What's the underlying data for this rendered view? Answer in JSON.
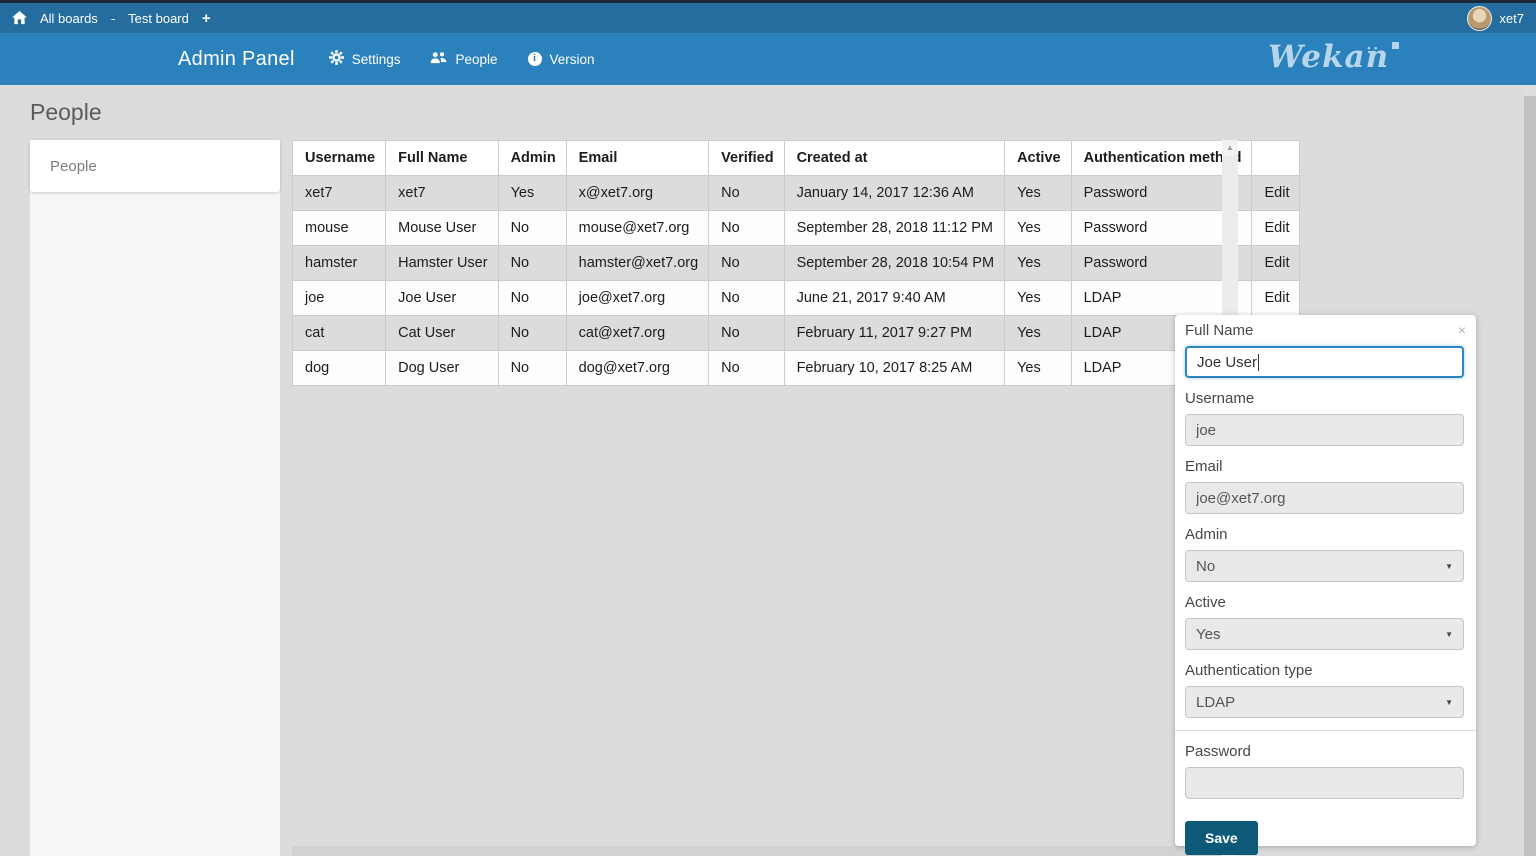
{
  "topbar": {
    "all_boards": "All boards",
    "separator": "-",
    "board_name": "Test board",
    "username": "xet7"
  },
  "adminbar": {
    "title": "Admin Panel",
    "nav": {
      "settings": "Settings",
      "people": "People",
      "version": "Version"
    },
    "logo_text": "Wekan"
  },
  "page": {
    "title": "People",
    "sidebar_item": "People"
  },
  "table": {
    "headers": [
      "Username",
      "Full Name",
      "Admin",
      "Email",
      "Verified",
      "Created at",
      "Active",
      "Authentication method",
      ""
    ],
    "edit_label": "Edit",
    "rows": [
      [
        "xet7",
        "xet7",
        "Yes",
        "x@xet7.org",
        "No",
        "January 14, 2017 12:36 AM",
        "Yes",
        "Password"
      ],
      [
        "mouse",
        "Mouse User",
        "No",
        "mouse@xet7.org",
        "No",
        "September 28, 2018 11:12 PM",
        "Yes",
        "Password"
      ],
      [
        "hamster",
        "Hamster User",
        "No",
        "hamster@xet7.org",
        "No",
        "September 28, 2018 10:54 PM",
        "Yes",
        "Password"
      ],
      [
        "joe",
        "Joe User",
        "No",
        "joe@xet7.org",
        "No",
        "June 21, 2017 9:40 AM",
        "Yes",
        "LDAP"
      ],
      [
        "cat",
        "Cat User",
        "No",
        "cat@xet7.org",
        "No",
        "February 11, 2017 9:27 PM",
        "Yes",
        "LDAP"
      ],
      [
        "dog",
        "Dog User",
        "No",
        "dog@xet7.org",
        "No",
        "February 10, 2017 8:25 AM",
        "Yes",
        "LDAP"
      ]
    ]
  },
  "edit_panel": {
    "fields": {
      "full_name": {
        "label": "Full Name",
        "value": "Joe User"
      },
      "username": {
        "label": "Username",
        "value": "joe"
      },
      "email": {
        "label": "Email",
        "value": "joe@xet7.org"
      },
      "admin": {
        "label": "Admin",
        "value": "No"
      },
      "active": {
        "label": "Active",
        "value": "Yes"
      },
      "auth_type": {
        "label": "Authentication type",
        "value": "LDAP"
      },
      "password": {
        "label": "Password",
        "value": ""
      }
    },
    "save_label": "Save"
  },
  "icons": {
    "plus": "+",
    "close": "×",
    "select_arrow": "▼",
    "scroll_up": "▲",
    "logo_dots": "··"
  },
  "colors": {
    "topbar": "#256d9e",
    "adminbar": "#2b81bb",
    "page_bg": "#dcdcdc",
    "row_alt": "#dcdcdc",
    "save_button": "#0d5a78",
    "focus_border": "#2e86c1",
    "logo": "#b7d6ec"
  }
}
